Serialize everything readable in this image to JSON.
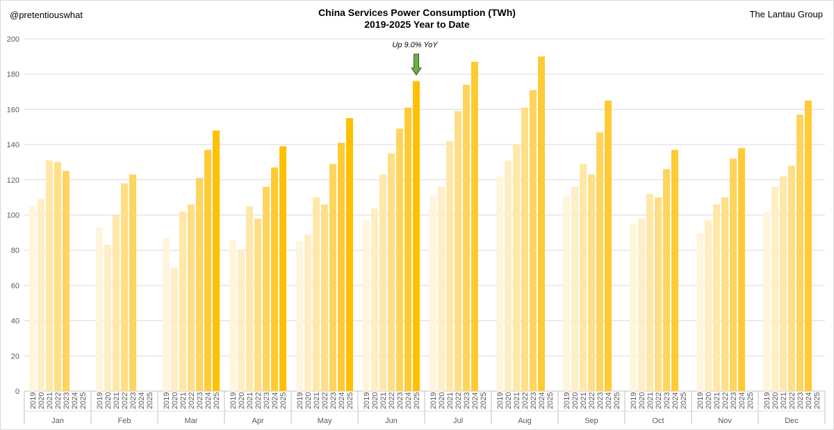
{
  "header": {
    "handle": "@pretentiouswhat",
    "source": "The Lantau Group",
    "title": "China Services Power Consumption (TWh)",
    "subtitle": "2019-2025 Year to Date"
  },
  "chart_data": {
    "type": "bar",
    "title": "China Services Power Consumption (TWh)",
    "subtitle": "2019-2025 Year to Date",
    "xlabel": "",
    "ylabel": "",
    "ylim": [
      0,
      200
    ],
    "yticks": [
      0,
      20,
      40,
      60,
      80,
      100,
      120,
      140,
      160,
      180,
      200
    ],
    "grid": true,
    "legend": "none",
    "months": [
      "Jan",
      "Feb",
      "Mar",
      "Apr",
      "May",
      "Jun",
      "Jul",
      "Aug",
      "Sep",
      "Oct",
      "Nov",
      "Dec"
    ],
    "years": [
      "2019",
      "2020",
      "2021",
      "2022",
      "2023",
      "2024",
      "2025"
    ],
    "year_colors": [
      "#FFF5DC",
      "#FFEEC4",
      "#FFE7A8",
      "#FFDE85",
      "#FFD45C",
      "#FFCA33",
      "#FFC000"
    ],
    "values": [
      [
        105,
        109,
        131,
        130,
        125,
        null,
        null
      ],
      [
        93,
        83,
        100,
        118,
        123,
        null,
        null
      ],
      [
        87,
        70,
        102,
        106,
        121,
        137,
        148
      ],
      [
        86,
        80,
        105,
        98,
        116,
        127,
        139
      ],
      [
        85,
        89,
        110,
        106,
        129,
        141,
        155
      ],
      [
        97,
        104,
        123,
        135,
        149,
        161,
        176
      ],
      [
        111,
        116,
        142,
        159,
        174,
        187,
        null
      ],
      [
        122,
        131,
        140,
        161,
        171,
        190,
        null
      ],
      [
        111,
        116,
        129,
        123,
        147,
        165,
        null
      ],
      [
        95,
        98,
        112,
        110,
        126,
        137,
        null
      ],
      [
        90,
        97,
        106,
        110,
        132,
        138,
        null
      ],
      [
        102,
        116,
        122,
        128,
        157,
        165,
        null
      ]
    ],
    "annotation": {
      "text": "Up 9.0% YoY",
      "month": "Jun",
      "year": "2025",
      "arrow_color": "#70AD47"
    }
  }
}
